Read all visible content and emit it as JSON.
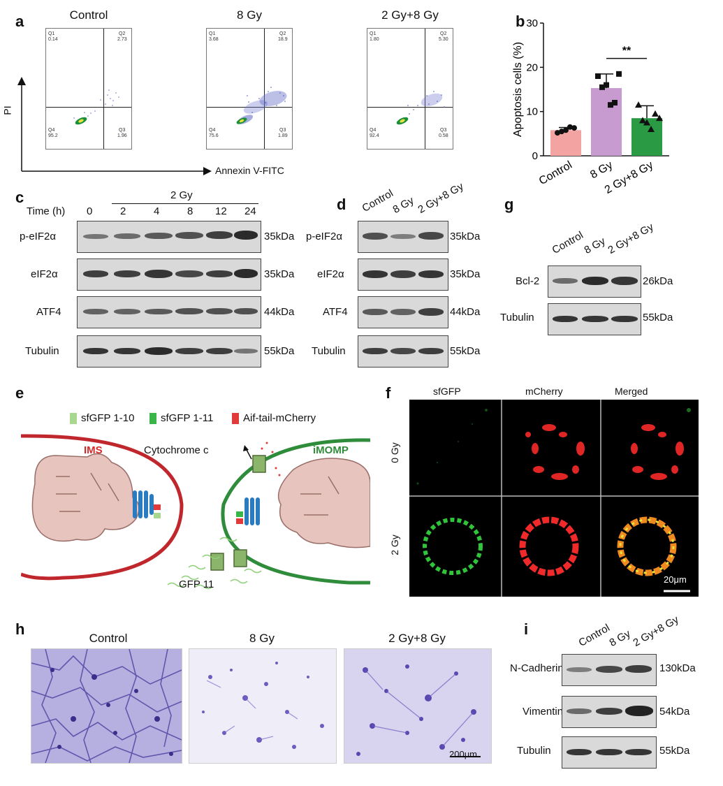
{
  "panel_labels": {
    "a": "a",
    "b": "b",
    "c": "c",
    "d": "d",
    "e": "e",
    "f": "f",
    "g": "g",
    "h": "h",
    "i": "i"
  },
  "panel_a": {
    "titles": [
      "Control",
      "8 Gy",
      "2 Gy+8 Gy"
    ],
    "y_axis_label": "PI",
    "x_axis_label": "Annexin V-FITC",
    "plots": [
      {
        "q1": "0.14",
        "q2": "2.73",
        "q3": "1.96",
        "q4": "95.2"
      },
      {
        "q1": "3.68",
        "q2": "18.9",
        "q3": "1.89",
        "q4": "75.6"
      },
      {
        "q1": "1.80",
        "q2": "5.30",
        "q3": "0.58",
        "q4": "92.4"
      }
    ],
    "quadrant_names": [
      "Q1",
      "Q2",
      "Q3",
      "Q4"
    ]
  },
  "chart_data": {
    "type": "bar",
    "categories": [
      "Control",
      "8 Gy",
      "2 Gy+8 Gy"
    ],
    "values": [
      5.8,
      15.3,
      8.5
    ],
    "errors": [
      0.6,
      3.2,
      2.8
    ],
    "points": [
      [
        5.2,
        5.8,
        6.3,
        5.5,
        6.5
      ],
      [
        18.0,
        16.0,
        12.0,
        15.5,
        11.5,
        18.5
      ],
      [
        11.5,
        7.5,
        9.5,
        8.0,
        6.0,
        8.5
      ]
    ],
    "ylabel": "Apoptosis cells (%)",
    "ylim": [
      0,
      30
    ],
    "yticks": [
      0,
      10,
      20,
      30
    ],
    "colors": [
      "#f4a3a3",
      "#c79bd0",
      "#2a9a45"
    ],
    "markers": [
      "circle",
      "square",
      "triangle"
    ],
    "significance": "**"
  },
  "panel_c": {
    "group_label": "2 Gy",
    "time_label": "Time (h)",
    "times": [
      "0",
      "2",
      "4",
      "8",
      "12",
      "24"
    ],
    "rows": [
      {
        "label": "p-eIF2α",
        "kda": "35kDa"
      },
      {
        "label": "eIF2α",
        "kda": "35kDa"
      },
      {
        "label": "ATF4",
        "kda": "44kDa"
      },
      {
        "label": "Tubulin",
        "kda": "55kDa"
      }
    ]
  },
  "panel_d": {
    "lanes": [
      "Control",
      "8 Gy",
      "2 Gy+8 Gy"
    ],
    "rows": [
      {
        "label": "p-eIF2α",
        "kda": "35kDa"
      },
      {
        "label": "eIF2α",
        "kda": "35kDa"
      },
      {
        "label": "ATF4",
        "kda": "44kDa"
      },
      {
        "label": "Tubulin",
        "kda": "55kDa"
      }
    ]
  },
  "panel_g": {
    "lanes": [
      "Control",
      "8 Gy",
      "2 Gy+8 Gy"
    ],
    "rows": [
      {
        "label": "Bcl-2",
        "kda": "26kDa"
      },
      {
        "label": "Tubulin",
        "kda": "55kDa"
      }
    ]
  },
  "panel_e": {
    "legend": [
      "sfGFP 1-10",
      "sfGFP 1-11",
      "Aif-tail-mCherry"
    ],
    "legend_colors": [
      "#a8d890",
      "#39b54a",
      "#e03a3a"
    ],
    "ims": "IMS",
    "imomp": "iMOMP",
    "cytochrome": "Cytochrome c",
    "gfp11": "GFP 11"
  },
  "panel_f": {
    "columns": [
      "sfGFP",
      "mCherry",
      "Merged"
    ],
    "rows": [
      "0 Gy",
      "2 Gy"
    ],
    "scale_bar": "20μm"
  },
  "panel_h": {
    "titles": [
      "Control",
      "8 Gy",
      "2 Gy+8 Gy"
    ],
    "scale_bar": "200μm"
  },
  "panel_i": {
    "lanes": [
      "Control",
      "8 Gy",
      "2 Gy+8 Gy"
    ],
    "rows": [
      {
        "label": "N-Cadherin",
        "kda": "130kDa"
      },
      {
        "label": "Vimentin",
        "kda": "54kDa"
      },
      {
        "label": "Tubulin",
        "kda": "55kDa"
      }
    ]
  }
}
